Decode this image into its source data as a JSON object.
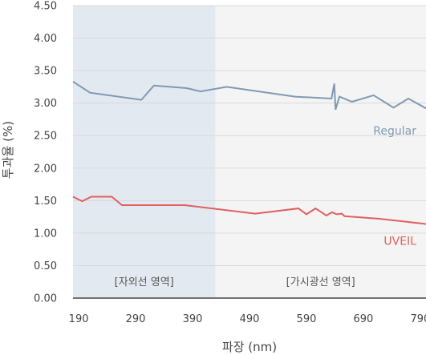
{
  "chart_data": {
    "type": "line",
    "xlabel": "파장 (nm)",
    "ylabel": "투과율 (%)",
    "xlim": [
      180,
      800
    ],
    "ylim": [
      0,
      4.5
    ],
    "x_ticks": [
      190,
      290,
      390,
      490,
      590,
      690,
      790
    ],
    "x_tick_labels": [
      "190",
      "290",
      "390",
      "490",
      "590",
      "690",
      "790"
    ],
    "y_ticks": [
      0,
      0.5,
      1,
      1.5,
      2,
      2.5,
      3,
      3.5,
      4,
      4.5
    ],
    "y_tick_labels": [
      "0.00",
      "0.50",
      "1.00",
      "1.50",
      "2.00",
      "2.50",
      "3.00",
      "3.50",
      "4.00",
      "4.50"
    ],
    "grid": "horizontal",
    "regions": [
      {
        "label": "[자외선 영역]",
        "x_start": 180,
        "x_end": 430,
        "color": "#e3e9f0"
      },
      {
        "label": "[가시광선 영역]",
        "x_start": 430,
        "x_end": 800,
        "color": "#f4f4f4"
      }
    ],
    "series": [
      {
        "name": "Regular",
        "color": "#8099b3",
        "points": [
          [
            180,
            3.33
          ],
          [
            210,
            3.16
          ],
          [
            300,
            3.05
          ],
          [
            322,
            3.27
          ],
          [
            380,
            3.23
          ],
          [
            404,
            3.18
          ],
          [
            450,
            3.25
          ],
          [
            570,
            3.1
          ],
          [
            634,
            3.07
          ],
          [
            639,
            3.3
          ],
          [
            641,
            2.9
          ],
          [
            648,
            3.1
          ],
          [
            670,
            3.02
          ],
          [
            708,
            3.12
          ],
          [
            743,
            2.93
          ],
          [
            769,
            3.07
          ],
          [
            800,
            2.92
          ]
        ]
      },
      {
        "name": "UVEIL",
        "color": "#e06060",
        "points": [
          [
            180,
            1.56
          ],
          [
            196,
            1.49
          ],
          [
            212,
            1.56
          ],
          [
            248,
            1.56
          ],
          [
            266,
            1.43
          ],
          [
            376,
            1.43
          ],
          [
            500,
            1.3
          ],
          [
            576,
            1.38
          ],
          [
            590,
            1.29
          ],
          [
            606,
            1.38
          ],
          [
            625,
            1.27
          ],
          [
            635,
            1.32
          ],
          [
            643,
            1.29
          ],
          [
            652,
            1.3
          ],
          [
            657,
            1.26
          ],
          [
            718,
            1.22
          ],
          [
            800,
            1.14
          ]
        ]
      }
    ]
  }
}
